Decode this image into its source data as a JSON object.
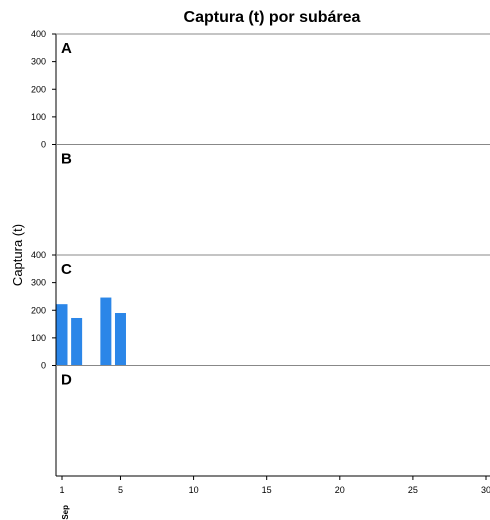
{
  "chart_data": {
    "type": "bar",
    "title": "Captura (t) por subárea",
    "ylabel": "Captura (t)",
    "xlabel": "",
    "x_month_label": "Sep",
    "xlim": [
      1,
      30
    ],
    "x_ticks": [
      1,
      5,
      10,
      15,
      20,
      25,
      30
    ],
    "ylim": [
      0,
      400
    ],
    "y_ticks": [
      0,
      100,
      200,
      300,
      400
    ],
    "grid": false,
    "panels": [
      {
        "label": "A",
        "show_y_ticks": true,
        "x": [],
        "values": []
      },
      {
        "label": "B",
        "show_y_ticks": false,
        "x": [],
        "values": []
      },
      {
        "label": "C",
        "show_y_ticks": true,
        "x": [
          1,
          2,
          4,
          5
        ],
        "values": [
          222,
          172,
          246,
          190
        ]
      },
      {
        "label": "D",
        "show_y_ticks": false,
        "x": [],
        "values": []
      }
    ],
    "bar_color": "#2b86e8"
  }
}
